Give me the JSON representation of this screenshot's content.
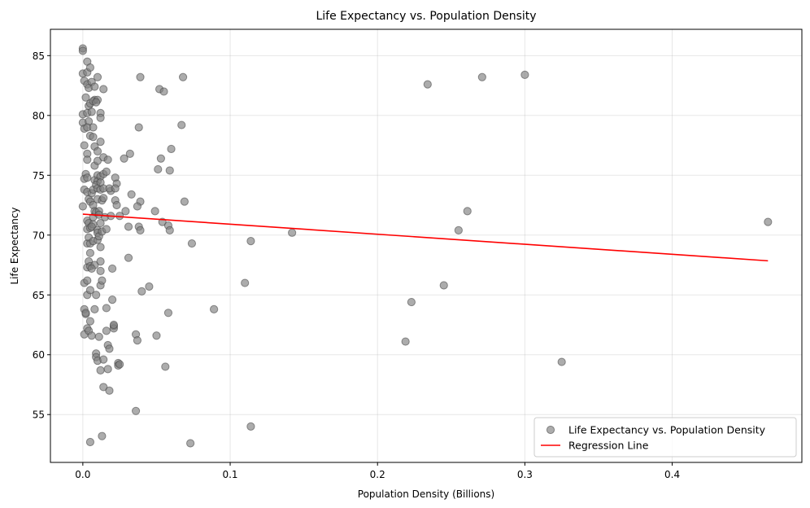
{
  "chart_data": {
    "type": "scatter",
    "title": "Life Expectancy vs. Population Density",
    "xlabel": "Population Density (Billions)",
    "ylabel": "Life Expectancy",
    "xlim": [
      -0.022,
      0.488
    ],
    "ylim": [
      51.0,
      87.2
    ],
    "xticks": [
      0.0,
      0.1,
      0.2,
      0.3,
      0.4
    ],
    "xtick_labels": [
      "0.0",
      "0.1",
      "0.2",
      "0.3",
      "0.4"
    ],
    "yticks": [
      55,
      60,
      65,
      70,
      75,
      80,
      85
    ],
    "ytick_labels": [
      "55",
      "60",
      "65",
      "70",
      "75",
      "80",
      "85"
    ],
    "grid": true,
    "legend_position": "bottom-right",
    "colors": {
      "points": "#808080",
      "point_edge": "#404040",
      "regression": "#ff0000"
    },
    "series": [
      {
        "name": "Life Expectancy vs. Population Density",
        "kind": "scatter",
        "points": [
          [
            0.0,
            85.6
          ],
          [
            0.0,
            85.4
          ],
          [
            0.0,
            83.5
          ],
          [
            0.001,
            82.9
          ],
          [
            0.0,
            80.1
          ],
          [
            0.0,
            79.4
          ],
          [
            0.001,
            78.9
          ],
          [
            0.001,
            77.5
          ],
          [
            0.002,
            75.1
          ],
          [
            0.001,
            74.7
          ],
          [
            0.001,
            73.8
          ],
          [
            0.0,
            72.4
          ],
          [
            0.001,
            66.0
          ],
          [
            0.001,
            63.8
          ],
          [
            0.002,
            63.4
          ],
          [
            0.001,
            61.7
          ],
          [
            0.003,
            84.5
          ],
          [
            0.003,
            83.6
          ],
          [
            0.003,
            82.6
          ],
          [
            0.004,
            82.3
          ],
          [
            0.002,
            81.5
          ],
          [
            0.004,
            80.8
          ],
          [
            0.003,
            80.2
          ],
          [
            0.004,
            79.5
          ],
          [
            0.003,
            79.0
          ],
          [
            0.003,
            76.8
          ],
          [
            0.003,
            76.3
          ],
          [
            0.003,
            74.8
          ],
          [
            0.003,
            73.6
          ],
          [
            0.004,
            73.0
          ],
          [
            0.003,
            71.2
          ],
          [
            0.003,
            70.5
          ],
          [
            0.003,
            69.3
          ],
          [
            0.003,
            67.3
          ],
          [
            0.003,
            66.2
          ],
          [
            0.003,
            65.0
          ],
          [
            0.002,
            63.5
          ],
          [
            0.003,
            62.2
          ],
          [
            0.005,
            84.0
          ],
          [
            0.006,
            82.8
          ],
          [
            0.005,
            81.0
          ],
          [
            0.006,
            80.3
          ],
          [
            0.005,
            78.3
          ],
          [
            0.006,
            73.5
          ],
          [
            0.005,
            72.8
          ],
          [
            0.004,
            71.0
          ],
          [
            0.005,
            70.6
          ],
          [
            0.004,
            69.8
          ],
          [
            0.005,
            69.3
          ],
          [
            0.005,
            68.5
          ],
          [
            0.004,
            67.8
          ],
          [
            0.005,
            67.4
          ],
          [
            0.005,
            65.4
          ],
          [
            0.005,
            62.8
          ],
          [
            0.004,
            62.0
          ],
          [
            0.005,
            52.7
          ],
          [
            0.008,
            82.4
          ],
          [
            0.008,
            81.3
          ],
          [
            0.007,
            81.2
          ],
          [
            0.007,
            79.0
          ],
          [
            0.007,
            78.2
          ],
          [
            0.008,
            77.4
          ],
          [
            0.008,
            75.8
          ],
          [
            0.008,
            74.6
          ],
          [
            0.007,
            73.8
          ],
          [
            0.007,
            72.5
          ],
          [
            0.008,
            72.0
          ],
          [
            0.007,
            71.5
          ],
          [
            0.007,
            70.9
          ],
          [
            0.006,
            70.7
          ],
          [
            0.007,
            69.5
          ],
          [
            0.008,
            67.5
          ],
          [
            0.006,
            67.2
          ],
          [
            0.008,
            63.8
          ],
          [
            0.006,
            61.6
          ],
          [
            0.01,
            83.2
          ],
          [
            0.01,
            81.3
          ],
          [
            0.009,
            81.1
          ],
          [
            0.01,
            77.0
          ],
          [
            0.01,
            76.2
          ],
          [
            0.01,
            75.0
          ],
          [
            0.01,
            74.5
          ],
          [
            0.009,
            74.2
          ],
          [
            0.01,
            73.9
          ],
          [
            0.01,
            73.0
          ],
          [
            0.009,
            71.9
          ],
          [
            0.01,
            70.4
          ],
          [
            0.01,
            70.2
          ],
          [
            0.01,
            69.6
          ],
          [
            0.009,
            65.0
          ],
          [
            0.009,
            60.1
          ],
          [
            0.009,
            59.8
          ],
          [
            0.01,
            59.5
          ],
          [
            0.012,
            80.2
          ],
          [
            0.012,
            79.8
          ],
          [
            0.012,
            77.8
          ],
          [
            0.012,
            74.9
          ],
          [
            0.012,
            74.4
          ],
          [
            0.012,
            73.8
          ],
          [
            0.013,
            72.9
          ],
          [
            0.011,
            72.0
          ],
          [
            0.011,
            71.7
          ],
          [
            0.012,
            71.0
          ],
          [
            0.011,
            69.9
          ],
          [
            0.012,
            69.0
          ],
          [
            0.012,
            67.8
          ],
          [
            0.012,
            67.0
          ],
          [
            0.012,
            65.8
          ],
          [
            0.011,
            61.5
          ],
          [
            0.012,
            58.7
          ],
          [
            0.013,
            53.2
          ],
          [
            0.014,
            82.2
          ],
          [
            0.014,
            76.5
          ],
          [
            0.014,
            75.1
          ],
          [
            0.014,
            73.9
          ],
          [
            0.014,
            73.1
          ],
          [
            0.015,
            71.5
          ],
          [
            0.013,
            70.3
          ],
          [
            0.013,
            66.2
          ],
          [
            0.014,
            59.6
          ],
          [
            0.014,
            57.3
          ],
          [
            0.016,
            75.3
          ],
          [
            0.017,
            76.3
          ],
          [
            0.016,
            70.5
          ],
          [
            0.016,
            63.9
          ],
          [
            0.016,
            62.0
          ],
          [
            0.017,
            60.8
          ],
          [
            0.018,
            60.5
          ],
          [
            0.017,
            58.8
          ],
          [
            0.018,
            57.0
          ],
          [
            0.019,
            73.7
          ],
          [
            0.019,
            71.6
          ],
          [
            0.02,
            67.2
          ],
          [
            0.02,
            64.6
          ],
          [
            0.021,
            62.4
          ],
          [
            0.021,
            62.2
          ],
          [
            0.021,
            62.5
          ],
          [
            0.018,
            73.9
          ],
          [
            0.022,
            74.8
          ],
          [
            0.023,
            74.3
          ],
          [
            0.022,
            73.9
          ],
          [
            0.022,
            72.9
          ],
          [
            0.023,
            72.5
          ],
          [
            0.025,
            71.6
          ],
          [
            0.024,
            59.3
          ],
          [
            0.024,
            59.1
          ],
          [
            0.025,
            59.2
          ],
          [
            0.028,
            76.4
          ],
          [
            0.029,
            72.0
          ],
          [
            0.032,
            76.8
          ],
          [
            0.031,
            70.7
          ],
          [
            0.033,
            73.4
          ],
          [
            0.031,
            68.1
          ],
          [
            0.036,
            61.7
          ],
          [
            0.037,
            61.2
          ],
          [
            0.036,
            55.3
          ],
          [
            0.039,
            83.2
          ],
          [
            0.038,
            79.0
          ],
          [
            0.039,
            72.8
          ],
          [
            0.037,
            72.4
          ],
          [
            0.038,
            70.7
          ],
          [
            0.039,
            70.4
          ],
          [
            0.04,
            65.3
          ],
          [
            0.045,
            65.7
          ],
          [
            0.049,
            72.0
          ],
          [
            0.05,
            61.6
          ],
          [
            0.052,
            82.2
          ],
          [
            0.055,
            82.0
          ],
          [
            0.053,
            76.4
          ],
          [
            0.051,
            75.5
          ],
          [
            0.054,
            71.1
          ],
          [
            0.058,
            70.8
          ],
          [
            0.058,
            63.5
          ],
          [
            0.056,
            59.0
          ],
          [
            0.06,
            77.2
          ],
          [
            0.059,
            75.4
          ],
          [
            0.059,
            70.4
          ],
          [
            0.067,
            79.2
          ],
          [
            0.068,
            83.2
          ],
          [
            0.069,
            72.8
          ],
          [
            0.074,
            69.3
          ],
          [
            0.073,
            52.6
          ],
          [
            0.089,
            63.8
          ],
          [
            0.11,
            66.0
          ],
          [
            0.114,
            69.5
          ],
          [
            0.114,
            54.0
          ],
          [
            0.142,
            70.2
          ],
          [
            0.219,
            61.1
          ],
          [
            0.223,
            64.4
          ],
          [
            0.234,
            82.6
          ],
          [
            0.245,
            65.8
          ],
          [
            0.255,
            70.4
          ],
          [
            0.261,
            72.0
          ],
          [
            0.271,
            83.2
          ],
          [
            0.3,
            83.4
          ],
          [
            0.325,
            59.4
          ],
          [
            0.465,
            71.1
          ]
        ]
      },
      {
        "name": "Regression Line",
        "kind": "line",
        "points": [
          [
            0.0,
            71.75
          ],
          [
            0.465,
            67.85
          ]
        ]
      }
    ]
  }
}
